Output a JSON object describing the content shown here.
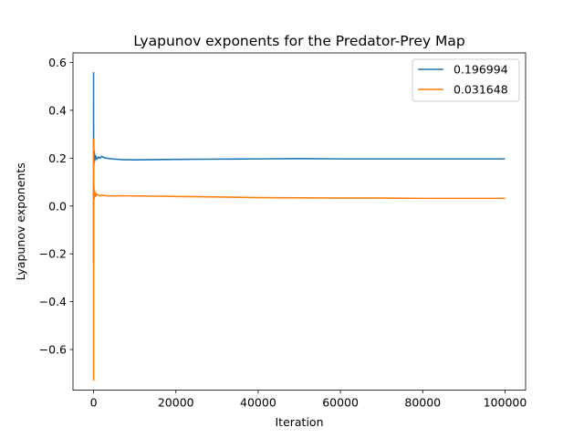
{
  "chart_data": {
    "type": "line",
    "title": "Lyapunov exponents for the Predator-Prey Map",
    "xlabel": "Iteration",
    "ylabel": "Lyapunov exponents",
    "xlim": [
      -5000,
      105000
    ],
    "ylim": [
      -0.77,
      0.64
    ],
    "xticks": [
      0,
      20000,
      40000,
      60000,
      80000,
      100000
    ],
    "xtick_labels": [
      "0",
      "20000",
      "40000",
      "60000",
      "80000",
      "100000"
    ],
    "yticks": [
      -0.6,
      -0.4,
      -0.2,
      0.0,
      0.2,
      0.4,
      0.6
    ],
    "ytick_labels": [
      "−0.6",
      "−0.4",
      "−0.2",
      "0.0",
      "0.2",
      "0.4",
      "0.6"
    ],
    "grid": false,
    "legend_position": "top-right",
    "series": [
      {
        "name": "0.196994",
        "color": "#1f77b4",
        "x": [
          0,
          1,
          2,
          5,
          10,
          20,
          40,
          80,
          150,
          300,
          500,
          800,
          1200,
          1600,
          2000,
          2500,
          3000,
          4000,
          5000,
          7000,
          10000,
          15000,
          20000,
          30000,
          40000,
          50000,
          60000,
          70000,
          80000,
          90000,
          100000
        ],
        "y": [
          0.56,
          -0.24,
          0.42,
          0.05,
          0.35,
          0.12,
          0.28,
          0.17,
          0.23,
          0.19,
          0.21,
          0.195,
          0.205,
          0.2,
          0.208,
          0.202,
          0.2,
          0.198,
          0.196,
          0.194,
          0.193,
          0.194,
          0.195,
          0.196,
          0.197,
          0.198,
          0.197,
          0.197,
          0.197,
          0.197,
          0.197
        ]
      },
      {
        "name": "0.031648",
        "color": "#ff7f0e",
        "x": [
          0,
          1,
          2,
          5,
          10,
          20,
          40,
          80,
          150,
          300,
          500,
          800,
          1200,
          1600,
          2000,
          2500,
          3000,
          4000,
          5000,
          7000,
          10000,
          15000,
          20000,
          30000,
          40000,
          50000,
          60000,
          70000,
          80000,
          90000,
          100000
        ],
        "y": [
          -0.73,
          0.28,
          -0.2,
          0.18,
          -0.05,
          0.12,
          0.0,
          0.09,
          0.03,
          0.06,
          0.04,
          0.05,
          0.045,
          0.042,
          0.046,
          0.044,
          0.043,
          0.042,
          0.042,
          0.043,
          0.042,
          0.041,
          0.04,
          0.038,
          0.035,
          0.034,
          0.033,
          0.033,
          0.032,
          0.032,
          0.032
        ]
      }
    ]
  }
}
